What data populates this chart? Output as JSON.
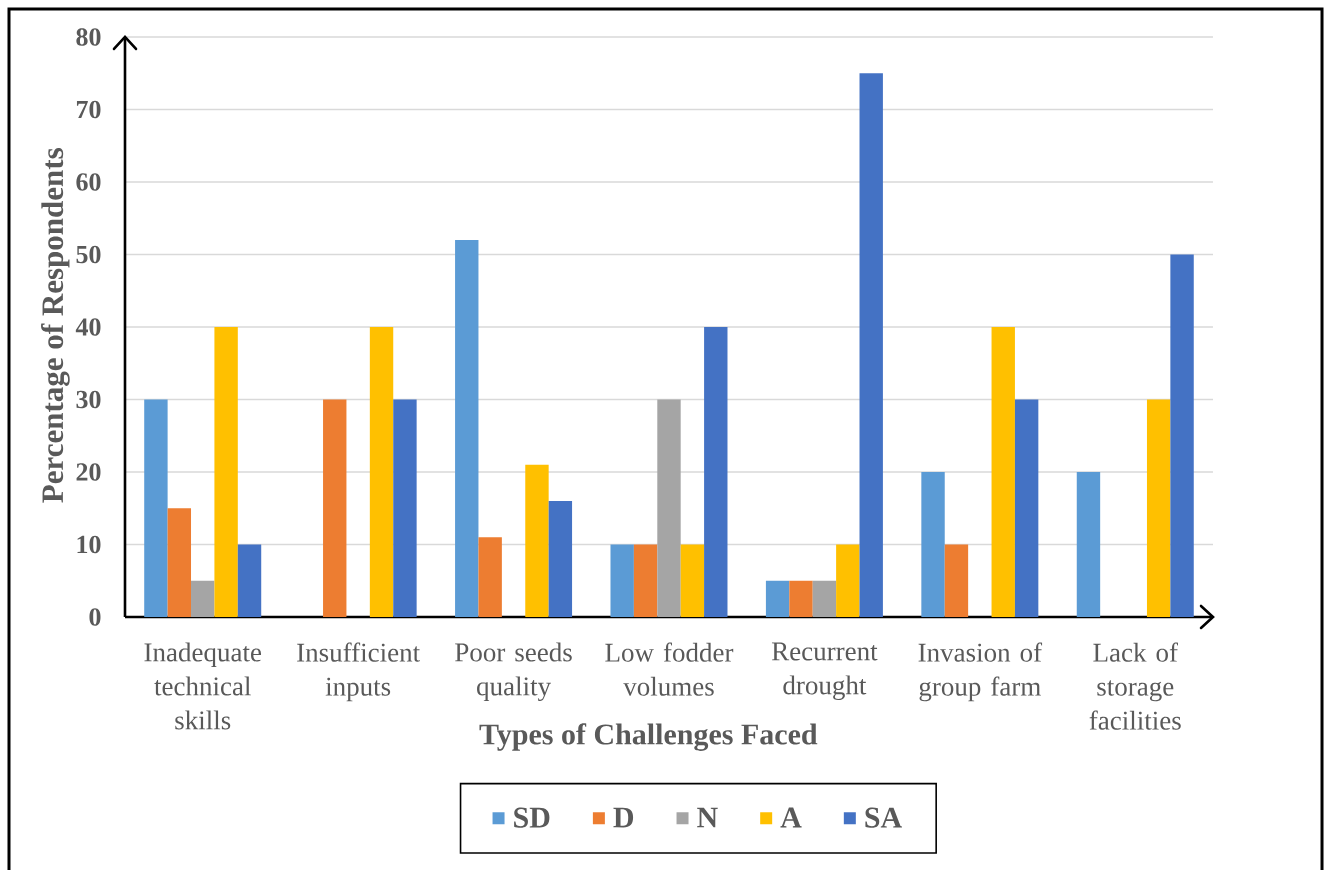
{
  "chart_data": {
    "type": "bar",
    "xlabel": "Types of Challenges Faced",
    "ylabel": "Percentage of Respondents",
    "categories": [
      "Inadequate technical skills",
      "Insufficient inputs",
      "Poor seeds quality",
      "Low fodder volumes",
      "Recurrent drought",
      "Invasion of group farm",
      "Lack of storage facilities"
    ],
    "series": [
      {
        "name": "SD",
        "color": "#5b9bd5",
        "values": [
          30,
          0,
          52,
          10,
          5,
          20,
          20
        ]
      },
      {
        "name": "D",
        "color": "#ed7d31",
        "values": [
          15,
          30,
          11,
          10,
          5,
          10,
          0
        ]
      },
      {
        "name": "N",
        "color": "#a5a5a5",
        "values": [
          5,
          0,
          0,
          30,
          5,
          0,
          0
        ]
      },
      {
        "name": "A",
        "color": "#ffc000",
        "values": [
          40,
          40,
          21,
          10,
          10,
          40,
          30
        ]
      },
      {
        "name": "SA",
        "color": "#4472c4",
        "values": [
          10,
          30,
          16,
          40,
          75,
          30,
          50
        ]
      }
    ],
    "ylim": [
      0,
      80
    ],
    "yticks": [
      0,
      10,
      20,
      30,
      40,
      50,
      60,
      70,
      80
    ],
    "grid": "y",
    "legend": "bottom"
  }
}
